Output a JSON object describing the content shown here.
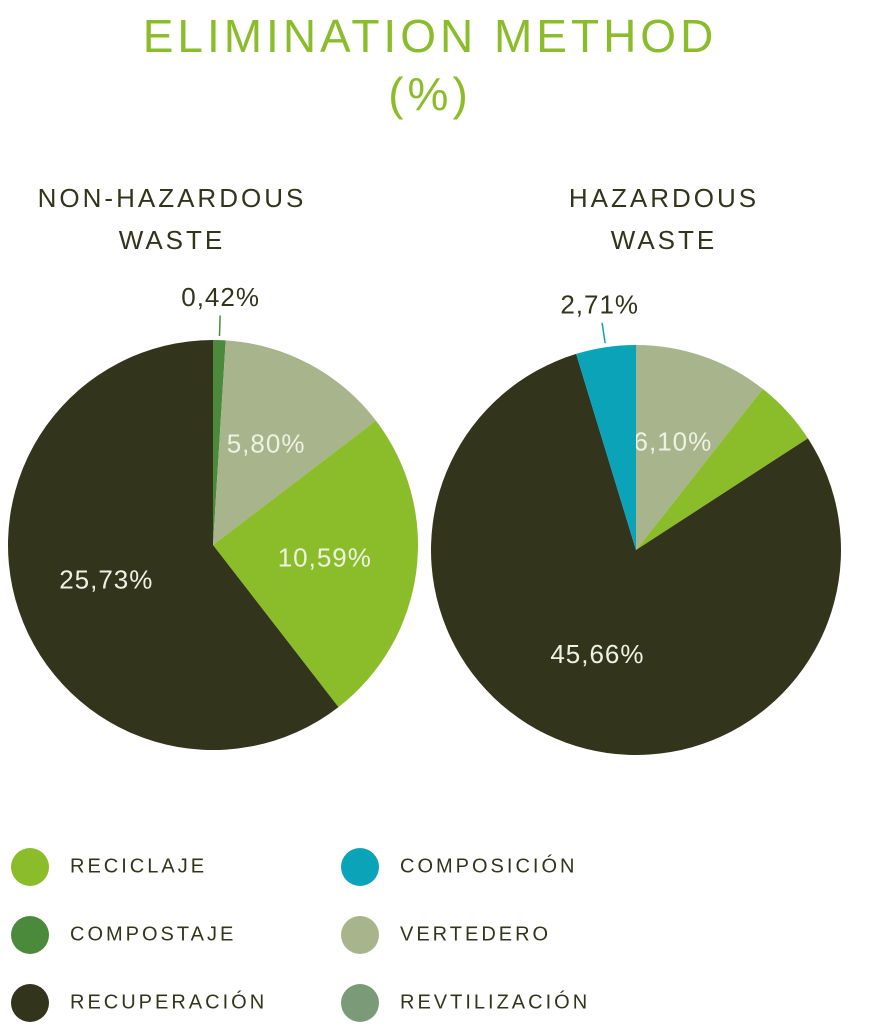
{
  "title": [
    "ELIMINATION METHOD",
    "(%)"
  ],
  "chart_data": [
    {
      "type": "pie",
      "title": "NON-HAZARDOUS WASTE",
      "categories": [
        "Compostaje",
        "Vertedero",
        "Reciclaje",
        "Recuperación"
      ],
      "values": [
        0.42,
        5.8,
        10.59,
        25.73
      ],
      "value_labels": [
        "0,42%",
        "5,80%",
        "10,59%",
        "25,73%"
      ],
      "colors": [
        "#4a8a3a",
        "#a8b48c",
        "#8bbd2b",
        "#33341c"
      ]
    },
    {
      "type": "pie",
      "title": "HAZARDOUS WASTE",
      "categories": [
        "Vertedero",
        "Reciclaje",
        "Recuperación",
        "Composición"
      ],
      "values": [
        6.1,
        3.0,
        45.66,
        2.71
      ],
      "value_labels": [
        "6,10%",
        null,
        "45,66%",
        "2,71%"
      ],
      "colors": [
        "#a8b48c",
        "#8bbd2b",
        "#33341c",
        "#0aa3b8"
      ]
    }
  ],
  "legend": [
    {
      "name": "RECICLAJE",
      "color": "#8bbd2b"
    },
    {
      "name": "COMPOSTAJE",
      "color": "#4a8a3a"
    },
    {
      "name": "RECUPERACIÓN",
      "color": "#33341c"
    },
    {
      "name": "COMPOSICIÓN",
      "color": "#0aa3b8"
    },
    {
      "name": "VERTEDERO",
      "color": "#a8b48c"
    },
    {
      "name": "REVTILIZACIÓN",
      "color": "#7a9a78"
    }
  ]
}
